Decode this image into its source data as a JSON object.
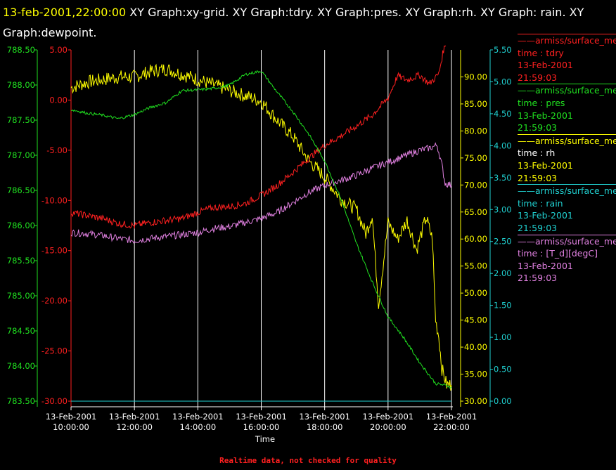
{
  "title": {
    "timestamp": "13-feb-2001,22:00:00",
    "text": " XY Graph:xy-grid.  XY Graph:tdry.  XY Graph:pres.  XY Graph:rh.  XY Graph: rain.  XY Graph:dewpoint."
  },
  "footer": "Realtime data, not checked for quality",
  "colors": {
    "tdry": "#ff2020",
    "pres": "#20e020",
    "rh": "#ffff00",
    "rain": "#20d0d0",
    "dewpoint": "#e080e0",
    "grid": "#ffffff",
    "background": "#000000"
  },
  "legend": [
    {
      "key": "tdry",
      "source": "armiss/surface_me",
      "line1": "time : tdry",
      "line2": "13-Feb-2001",
      "line3": "21:59:03",
      "line1_color": "#ff2020"
    },
    {
      "key": "pres",
      "source": "armiss/surface_me",
      "line1": "time : pres",
      "line2": "13-Feb-2001",
      "line3": "21:59:03",
      "line1_color": "#20e020"
    },
    {
      "key": "rh",
      "source": "armiss/surface_me",
      "line1": "time : rh",
      "line2": "13-Feb-2001",
      "line3": "21:59:03",
      "line1_color": "#ffffff"
    },
    {
      "key": "rain",
      "source": "armiss/surface_me",
      "line1": "time : rain",
      "line2": "13-Feb-2001",
      "line3": "21:59:03",
      "line1_color": "#20d0d0"
    },
    {
      "key": "dewpoint",
      "source": "armiss/surface_me",
      "line1": "time : [T_d][degC]",
      "line2": "13-Feb-2001",
      "line3": "21:59:03",
      "line1_color": "#e080e0"
    }
  ],
  "chart_data": {
    "type": "line",
    "xlabel": "Time",
    "x_ticks": [
      {
        "date": "13-Feb-2001",
        "time": "10:00:00",
        "hour": 10
      },
      {
        "date": "13-Feb-2001",
        "time": "12:00:00",
        "hour": 12
      },
      {
        "date": "13-Feb-2001",
        "time": "14:00:00",
        "hour": 14
      },
      {
        "date": "13-Feb-2001",
        "time": "16:00:00",
        "hour": 16
      },
      {
        "date": "13-Feb-2001",
        "time": "18:00:00",
        "hour": 18
      },
      {
        "date": "13-Feb-2001",
        "time": "20:00:00",
        "hour": 20
      },
      {
        "date": "13-Feb-2001",
        "time": "22:00:00",
        "hour": 22
      }
    ],
    "xlim": [
      10,
      22
    ],
    "grid": true,
    "axes": {
      "pres": {
        "side": "left-outer",
        "ylim": [
          783.5,
          788.5
        ],
        "ticks": [
          "783.50",
          "784.00",
          "784.50",
          "785.00",
          "785.50",
          "786.00",
          "786.50",
          "787.00",
          "787.50",
          "788.00",
          "788.50"
        ]
      },
      "tdry": {
        "side": "left-inner",
        "ylim": [
          -30,
          5
        ],
        "ticks": [
          "-30.00",
          "-25.00",
          "-20.00",
          "-15.00",
          "-10.00",
          "-5.00",
          "0.00",
          "5.00"
        ]
      },
      "rh": {
        "side": "right-inner",
        "ylim": [
          30,
          95
        ],
        "ticks": [
          "30.00",
          "35.00",
          "40.00",
          "45.00",
          "50.00",
          "55.00",
          "60.00",
          "65.00",
          "70.00",
          "75.00",
          "80.00",
          "85.00",
          "90.00"
        ]
      },
      "rain": {
        "side": "right-outer",
        "ylim": [
          0,
          5.5
        ],
        "ticks": [
          "0.00",
          "0.50",
          "1.00",
          "1.50",
          "2.00",
          "2.50",
          "3.00",
          "3.50",
          "4.00",
          "4.50",
          "5.00",
          "5.50"
        ]
      }
    },
    "series": [
      {
        "name": "tdry",
        "axis": "tdry",
        "noise": 0.35,
        "points": [
          [
            10,
            -11.2
          ],
          [
            10.5,
            -11.5
          ],
          [
            11,
            -11.8
          ],
          [
            11.5,
            -12.3
          ],
          [
            12,
            -12.5
          ],
          [
            12.5,
            -12.2
          ],
          [
            13,
            -12.0
          ],
          [
            13.5,
            -11.8
          ],
          [
            14,
            -11.2
          ],
          [
            14.5,
            -10.7
          ],
          [
            15,
            -10.6
          ],
          [
            15.5,
            -10.3
          ],
          [
            16,
            -9.5
          ],
          [
            16.5,
            -8.5
          ],
          [
            17,
            -7.2
          ],
          [
            17.5,
            -5.8
          ],
          [
            18,
            -4.5
          ],
          [
            18.5,
            -3.6
          ],
          [
            19,
            -2.6
          ],
          [
            19.5,
            -1.5
          ],
          [
            20,
            0.2
          ],
          [
            20.3,
            2.4
          ],
          [
            20.6,
            2.0
          ],
          [
            21,
            2.5
          ],
          [
            21.3,
            1.6
          ],
          [
            21.6,
            2.6
          ],
          [
            21.75,
            5.0
          ],
          [
            21.82,
            5.5
          ]
        ]
      },
      {
        "name": "pres",
        "axis": "pres",
        "noise": 0.02,
        "points": [
          [
            10,
            787.65
          ],
          [
            10.5,
            787.6
          ],
          [
            11,
            787.57
          ],
          [
            11.5,
            787.52
          ],
          [
            12,
            787.58
          ],
          [
            12.5,
            787.68
          ],
          [
            13,
            787.75
          ],
          [
            13.5,
            787.92
          ],
          [
            14,
            787.93
          ],
          [
            14.5,
            787.95
          ],
          [
            15,
            788.0
          ],
          [
            15.5,
            788.15
          ],
          [
            16,
            788.2
          ],
          [
            16.5,
            787.9
          ],
          [
            17,
            787.62
          ],
          [
            17.5,
            787.3
          ],
          [
            18,
            786.92
          ],
          [
            18.5,
            786.4
          ],
          [
            19,
            785.75
          ],
          [
            19.5,
            785.2
          ],
          [
            20,
            784.7
          ],
          [
            20.5,
            784.4
          ],
          [
            21,
            784.05
          ],
          [
            21.5,
            783.75
          ],
          [
            21.75,
            783.73
          ],
          [
            22,
            783.7
          ]
        ]
      },
      {
        "name": "rh",
        "axis": "rh",
        "noise": 1.3,
        "points": [
          [
            10,
            88
          ],
          [
            10.5,
            89
          ],
          [
            11,
            89.5
          ],
          [
            11.5,
            90
          ],
          [
            12,
            90
          ],
          [
            12.5,
            91
          ],
          [
            13,
            91.5
          ],
          [
            13.5,
            90.5
          ],
          [
            14,
            89.5
          ],
          [
            14.5,
            88.5
          ],
          [
            15,
            87.5
          ],
          [
            15.5,
            86.5
          ],
          [
            16,
            85.5
          ],
          [
            16.5,
            82
          ],
          [
            17,
            79
          ],
          [
            17.5,
            74.5
          ],
          [
            18,
            71.5
          ],
          [
            18.5,
            67.5
          ],
          [
            19,
            65.5
          ],
          [
            19.3,
            61
          ],
          [
            19.5,
            64.5
          ],
          [
            19.7,
            48
          ],
          [
            20,
            63
          ],
          [
            20.3,
            60
          ],
          [
            20.6,
            63.5
          ],
          [
            20.9,
            58
          ],
          [
            21.2,
            64
          ],
          [
            21.4,
            60
          ],
          [
            21.5,
            45
          ],
          [
            21.6,
            42
          ],
          [
            21.7,
            36
          ],
          [
            21.85,
            33
          ],
          [
            22,
            33
          ]
        ]
      },
      {
        "name": "rain",
        "axis": "rain",
        "noise": 0,
        "points": [
          [
            10,
            0
          ],
          [
            22,
            0
          ]
        ]
      },
      {
        "name": "dewpoint",
        "axis": "tdry",
        "noise": 0.35,
        "points": [
          [
            10,
            -13.2
          ],
          [
            10.5,
            -13.3
          ],
          [
            11,
            -13.5
          ],
          [
            11.5,
            -13.8
          ],
          [
            12,
            -14.0
          ],
          [
            12.5,
            -13.8
          ],
          [
            13,
            -13.6
          ],
          [
            13.5,
            -13.4
          ],
          [
            14,
            -13.2
          ],
          [
            14.5,
            -12.8
          ],
          [
            15,
            -12.6
          ],
          [
            15.5,
            -12.2
          ],
          [
            16,
            -11.8
          ],
          [
            16.5,
            -11.2
          ],
          [
            17,
            -10.2
          ],
          [
            17.5,
            -9.2
          ],
          [
            18,
            -8.5
          ],
          [
            18.5,
            -8.0
          ],
          [
            19,
            -7.5
          ],
          [
            19.5,
            -6.8
          ],
          [
            20,
            -6.2
          ],
          [
            20.5,
            -5.6
          ],
          [
            21,
            -5.0
          ],
          [
            21.3,
            -4.8
          ],
          [
            21.55,
            -4.5
          ],
          [
            21.7,
            -6.5
          ],
          [
            21.8,
            -8.3
          ],
          [
            22,
            -8.5
          ]
        ]
      }
    ]
  }
}
